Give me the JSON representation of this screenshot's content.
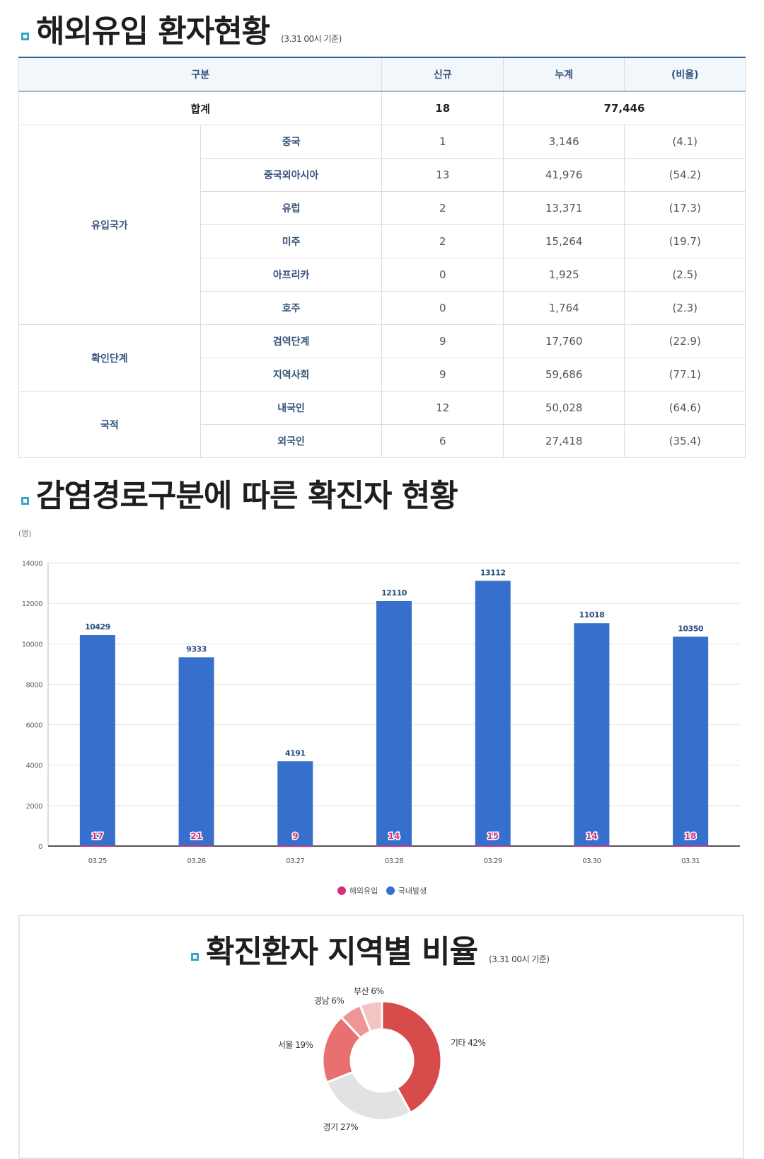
{
  "section1": {
    "title": "해외유입 환자현황",
    "note": "(3.31 00시 기준)"
  },
  "table": {
    "headers": [
      "구분",
      "신규",
      "누계",
      "(비율)"
    ],
    "total": {
      "label": "합계",
      "new": "18",
      "cumulative": "77,446"
    },
    "groups": [
      {
        "label": "유입국가",
        "rows": [
          {
            "label": "중국",
            "new": "1",
            "cumulative": "3,146",
            "ratio": "(4.1)"
          },
          {
            "label": "중국외아시아",
            "new": "13",
            "cumulative": "41,976",
            "ratio": "(54.2)"
          },
          {
            "label": "유럽",
            "new": "2",
            "cumulative": "13,371",
            "ratio": "(17.3)"
          },
          {
            "label": "미주",
            "new": "2",
            "cumulative": "15,264",
            "ratio": "(19.7)"
          },
          {
            "label": "아프리카",
            "new": "0",
            "cumulative": "1,925",
            "ratio": "(2.5)"
          },
          {
            "label": "호주",
            "new": "0",
            "cumulative": "1,764",
            "ratio": "(2.3)"
          }
        ]
      },
      {
        "label": "확인단계",
        "rows": [
          {
            "label": "검역단계",
            "new": "9",
            "cumulative": "17,760",
            "ratio": "(22.9)"
          },
          {
            "label": "지역사회",
            "new": "9",
            "cumulative": "59,686",
            "ratio": "(77.1)"
          }
        ]
      },
      {
        "label": "국적",
        "rows": [
          {
            "label": "내국인",
            "new": "12",
            "cumulative": "50,028",
            "ratio": "(64.6)"
          },
          {
            "label": "외국인",
            "new": "6",
            "cumulative": "27,418",
            "ratio": "(35.4)"
          }
        ]
      }
    ]
  },
  "section2": {
    "title": "감염경로구분에 따른 확진자 현황",
    "unit": "(명)"
  },
  "section3": {
    "title": "확진환자 지역별 비율",
    "note": "(3.31 00시 기준)"
  },
  "chart_data": [
    {
      "type": "bar",
      "categories": [
        "03.25",
        "03.26",
        "03.27",
        "03.28",
        "03.29",
        "03.30",
        "03.31"
      ],
      "series": [
        {
          "name": "해외유입",
          "values": [
            17,
            21,
            9,
            14,
            15,
            14,
            18
          ],
          "color": "#d4307c"
        },
        {
          "name": "국내발생",
          "values": [
            10429,
            9333,
            4191,
            12110,
            13112,
            11018,
            10350
          ],
          "color": "#3670cc"
        }
      ],
      "ylim": [
        0,
        14000
      ],
      "yticks": [
        0,
        2000,
        4000,
        6000,
        8000,
        10000,
        12000,
        14000
      ],
      "grid": true,
      "legend": "bottom-center"
    },
    {
      "type": "pie",
      "donut": true,
      "slices": [
        {
          "label": "기타",
          "value": 42,
          "text": "기타 42%",
          "color": "#d84b4b"
        },
        {
          "label": "경기",
          "value": 27,
          "text": "경기 27%",
          "color": "#e2e2e2"
        },
        {
          "label": "서울",
          "value": 19,
          "text": "서울 19%",
          "color": "#e87070"
        },
        {
          "label": "경남",
          "value": 6,
          "text": "경남 6%",
          "color": "#ee9696"
        },
        {
          "label": "부산",
          "value": 6,
          "text": "부산 6%",
          "color": "#f4c4c4"
        }
      ]
    }
  ]
}
